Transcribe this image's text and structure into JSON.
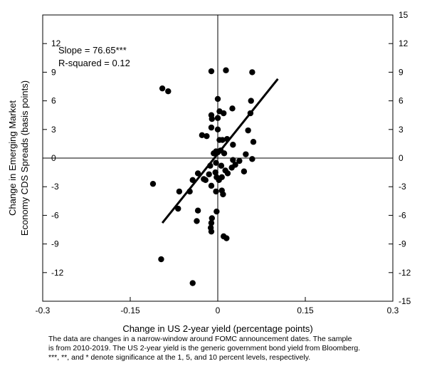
{
  "chart_data": {
    "type": "scatter",
    "xlabel": "Change in US 2-year yield (percentage points)",
    "ylabel_lines": [
      "Change in Emerging Market",
      "Economy CDS Spreads (basis points)"
    ],
    "xlim": [
      -0.3,
      0.3
    ],
    "ylim": [
      -15,
      15
    ],
    "x_ticks": [
      -0.3,
      -0.15,
      0,
      0.15,
      0.3
    ],
    "x_tick_labels": [
      "-0.3",
      "-0.15",
      "0",
      "0.15",
      "0.3"
    ],
    "y_ticks_left": [
      -12,
      -9,
      -6,
      -3,
      0,
      3,
      6,
      9,
      12
    ],
    "y_tick_labels_left": [
      "-12",
      "-9",
      "-6",
      "-3",
      "0",
      "3",
      "6",
      "9",
      "12"
    ],
    "y_ticks_right": [
      -15,
      -12,
      -9,
      -6,
      -3,
      0,
      3,
      6,
      9,
      12,
      15
    ],
    "y_tick_labels_right": [
      "-15",
      "-12",
      "-9",
      "-6",
      "-3",
      "0",
      "3",
      "6",
      "9",
      "12",
      "15"
    ],
    "annotations": [
      "Slope = 76.65***",
      "R-squared = 0.12"
    ],
    "fit_line": {
      "slope": 76.65,
      "x": [
        -0.095,
        0.103
      ],
      "y": [
        -6.8,
        8.3
      ]
    },
    "grid": false,
    "legend": "none",
    "points": [
      {
        "x": -0.095,
        "y": 7.3
      },
      {
        "x": -0.085,
        "y": 7.0
      },
      {
        "x": -0.011,
        "y": 9.1
      },
      {
        "x": 0.014,
        "y": 9.2
      },
      {
        "x": 0.059,
        "y": 9.0
      },
      {
        "x": 0.0,
        "y": 6.2
      },
      {
        "x": 0.003,
        "y": 4.9
      },
      {
        "x": 0.01,
        "y": 4.7
      },
      {
        "x": -0.011,
        "y": 4.5
      },
      {
        "x": -0.01,
        "y": 4.1
      },
      {
        "x": 0.0,
        "y": 4.2
      },
      {
        "x": 0.025,
        "y": 5.2
      },
      {
        "x": 0.057,
        "y": 6.0
      },
      {
        "x": 0.056,
        "y": 4.7
      },
      {
        "x": -0.027,
        "y": 2.4
      },
      {
        "x": -0.019,
        "y": 2.3
      },
      {
        "x": -0.011,
        "y": 3.2
      },
      {
        "x": 0.0,
        "y": 3.0
      },
      {
        "x": 0.052,
        "y": 2.9
      },
      {
        "x": 0.061,
        "y": 1.7
      },
      {
        "x": 0.003,
        "y": 1.9
      },
      {
        "x": 0.008,
        "y": 1.9
      },
      {
        "x": 0.016,
        "y": 2.0
      },
      {
        "x": 0.026,
        "y": 1.4
      },
      {
        "x": -0.007,
        "y": 0.5
      },
      {
        "x": -0.003,
        "y": 0.7
      },
      {
        "x": 0.0,
        "y": 0.6
      },
      {
        "x": 0.005,
        "y": 0.8
      },
      {
        "x": 0.011,
        "y": 0.5
      },
      {
        "x": 0.048,
        "y": 0.4
      },
      {
        "x": 0.026,
        "y": -0.2
      },
      {
        "x": 0.037,
        "y": -0.3
      },
      {
        "x": 0.059,
        "y": -0.1
      },
      {
        "x": 0.03,
        "y": -0.7
      },
      {
        "x": 0.024,
        "y": -1.0
      },
      {
        "x": 0.045,
        "y": -1.4
      },
      {
        "x": -0.013,
        "y": -0.8
      },
      {
        "x": -0.003,
        "y": -0.5
      },
      {
        "x": 0.006,
        "y": -0.8
      },
      {
        "x": 0.013,
        "y": -1.3
      },
      {
        "x": 0.017,
        "y": -1.6
      },
      {
        "x": -0.021,
        "y": -2.3
      },
      {
        "x": -0.024,
        "y": -2.2
      },
      {
        "x": -0.015,
        "y": -1.7
      },
      {
        "x": -0.004,
        "y": -1.5
      },
      {
        "x": -0.002,
        "y": -2.0
      },
      {
        "x": 0.002,
        "y": -2.3
      },
      {
        "x": 0.007,
        "y": -2.0
      },
      {
        "x": -0.048,
        "y": -3.5
      },
      {
        "x": -0.043,
        "y": -2.3
      },
      {
        "x": -0.034,
        "y": -1.6
      },
      {
        "x": -0.011,
        "y": -2.9
      },
      {
        "x": -0.003,
        "y": -3.5
      },
      {
        "x": 0.007,
        "y": -3.4
      },
      {
        "x": 0.009,
        "y": -3.8
      },
      {
        "x": -0.066,
        "y": -3.5
      },
      {
        "x": -0.111,
        "y": -2.7
      },
      {
        "x": -0.068,
        "y": -5.3
      },
      {
        "x": -0.034,
        "y": -5.5
      },
      {
        "x": -0.036,
        "y": -6.6
      },
      {
        "x": -0.01,
        "y": -6.3
      },
      {
        "x": -0.002,
        "y": -5.6
      },
      {
        "x": -0.011,
        "y": -6.8
      },
      {
        "x": -0.012,
        "y": -7.3
      },
      {
        "x": -0.011,
        "y": -7.7
      },
      {
        "x": 0.01,
        "y": -8.2
      },
      {
        "x": 0.015,
        "y": -8.4
      },
      {
        "x": -0.097,
        "y": -10.6
      },
      {
        "x": -0.043,
        "y": -13.1
      }
    ]
  }
}
